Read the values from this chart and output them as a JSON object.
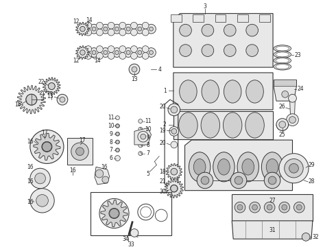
{
  "bg": "#f5f5f5",
  "fg": "#222222",
  "gray1": "#888888",
  "gray2": "#bbbbbb",
  "gray3": "#dddddd",
  "white": "#ffffff",
  "fig_w": 4.9,
  "fig_h": 3.6,
  "dpi": 100
}
